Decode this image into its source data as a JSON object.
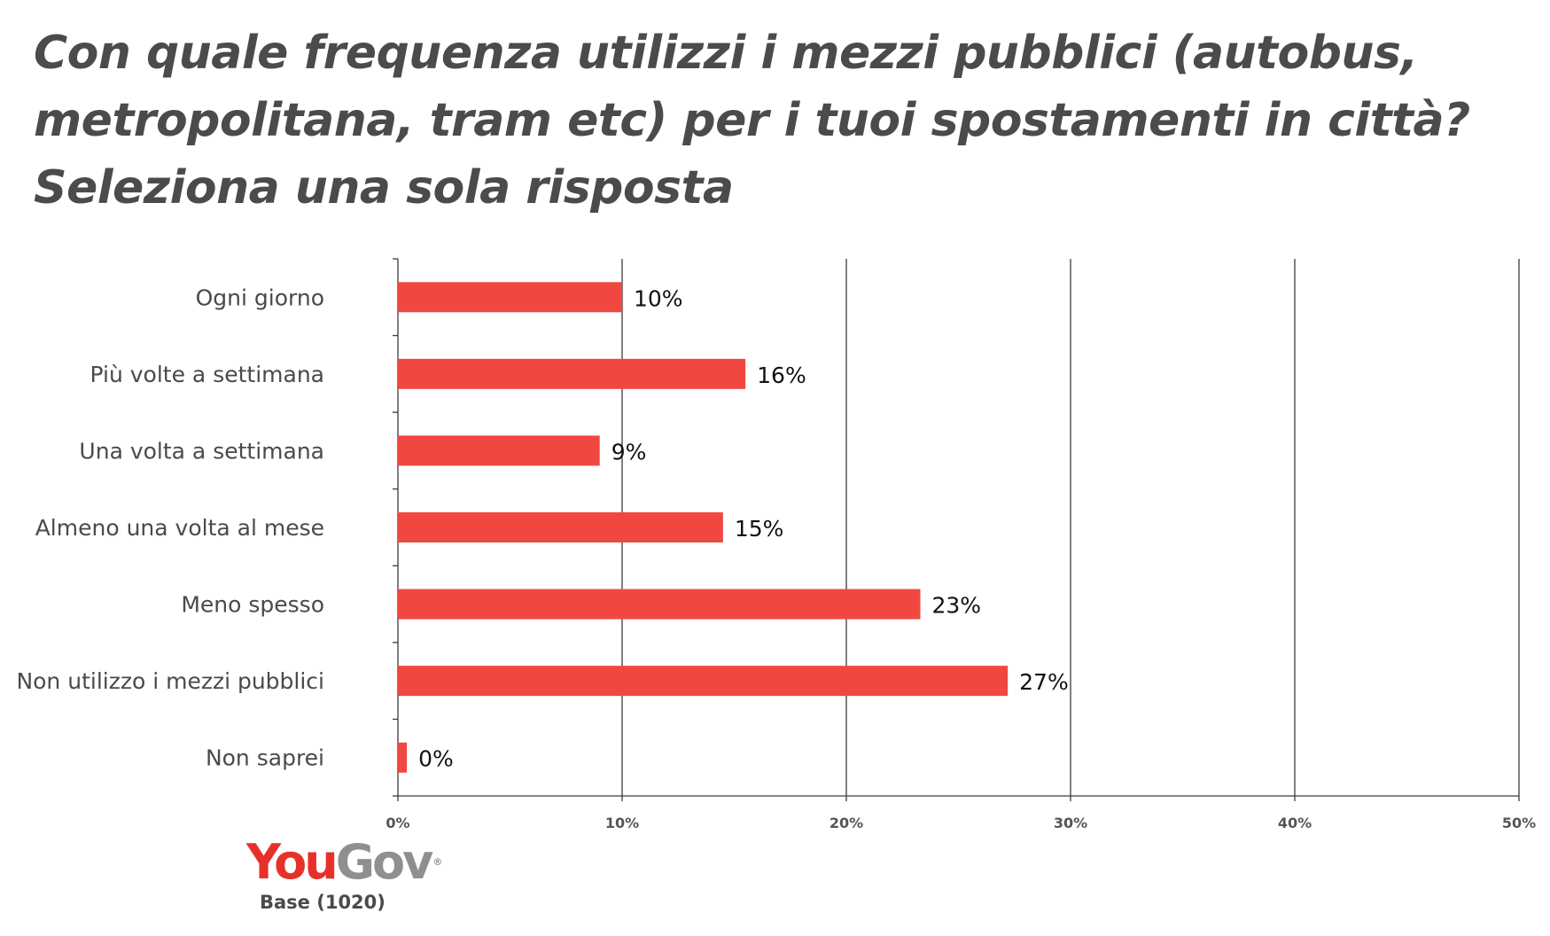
{
  "title_lines": [
    "Con quale frequenza utilizzi i mezzi pubblici (autobus,",
    "metropolitana, tram etc) per i tuoi spostamenti in città?",
    "Seleziona una sola risposta"
  ],
  "logo": {
    "you": "You",
    "gov": "Gov",
    "reg": "®"
  },
  "base_text": "Base (1020)",
  "colors": {
    "bar": "#f04840",
    "grid": "#3c3c3c",
    "logo_red": "#e8302a",
    "logo_gray": "#8f8f8f"
  },
  "chart_data": {
    "type": "bar",
    "orientation": "horizontal",
    "title": "Con quale frequenza utilizzi i mezzi pubblici (autobus, metropolitana, tram etc) per i tuoi spostamenti in città? Seleziona una sola risposta",
    "categories": [
      "Ogni giorno",
      "Più volte a settimana",
      "Una volta a settimana",
      "Almeno una volta al mese",
      "Meno spesso",
      "Non utilizzo i mezzi pubblici",
      "Non saprei"
    ],
    "values": [
      10,
      15.5,
      9,
      14.5,
      23.3,
      27.2,
      0.4
    ],
    "value_labels": [
      "10%",
      "16%",
      "9%",
      "15%",
      "23%",
      "27%",
      "0%"
    ],
    "xlim": [
      0,
      50
    ],
    "xticks": [
      0,
      10,
      20,
      30,
      40,
      50
    ],
    "xtick_labels": [
      "0%",
      "10%",
      "20%",
      "30%",
      "40%",
      "50%"
    ],
    "xlabel": "",
    "ylabel": "",
    "grid": true,
    "legend": "none"
  }
}
